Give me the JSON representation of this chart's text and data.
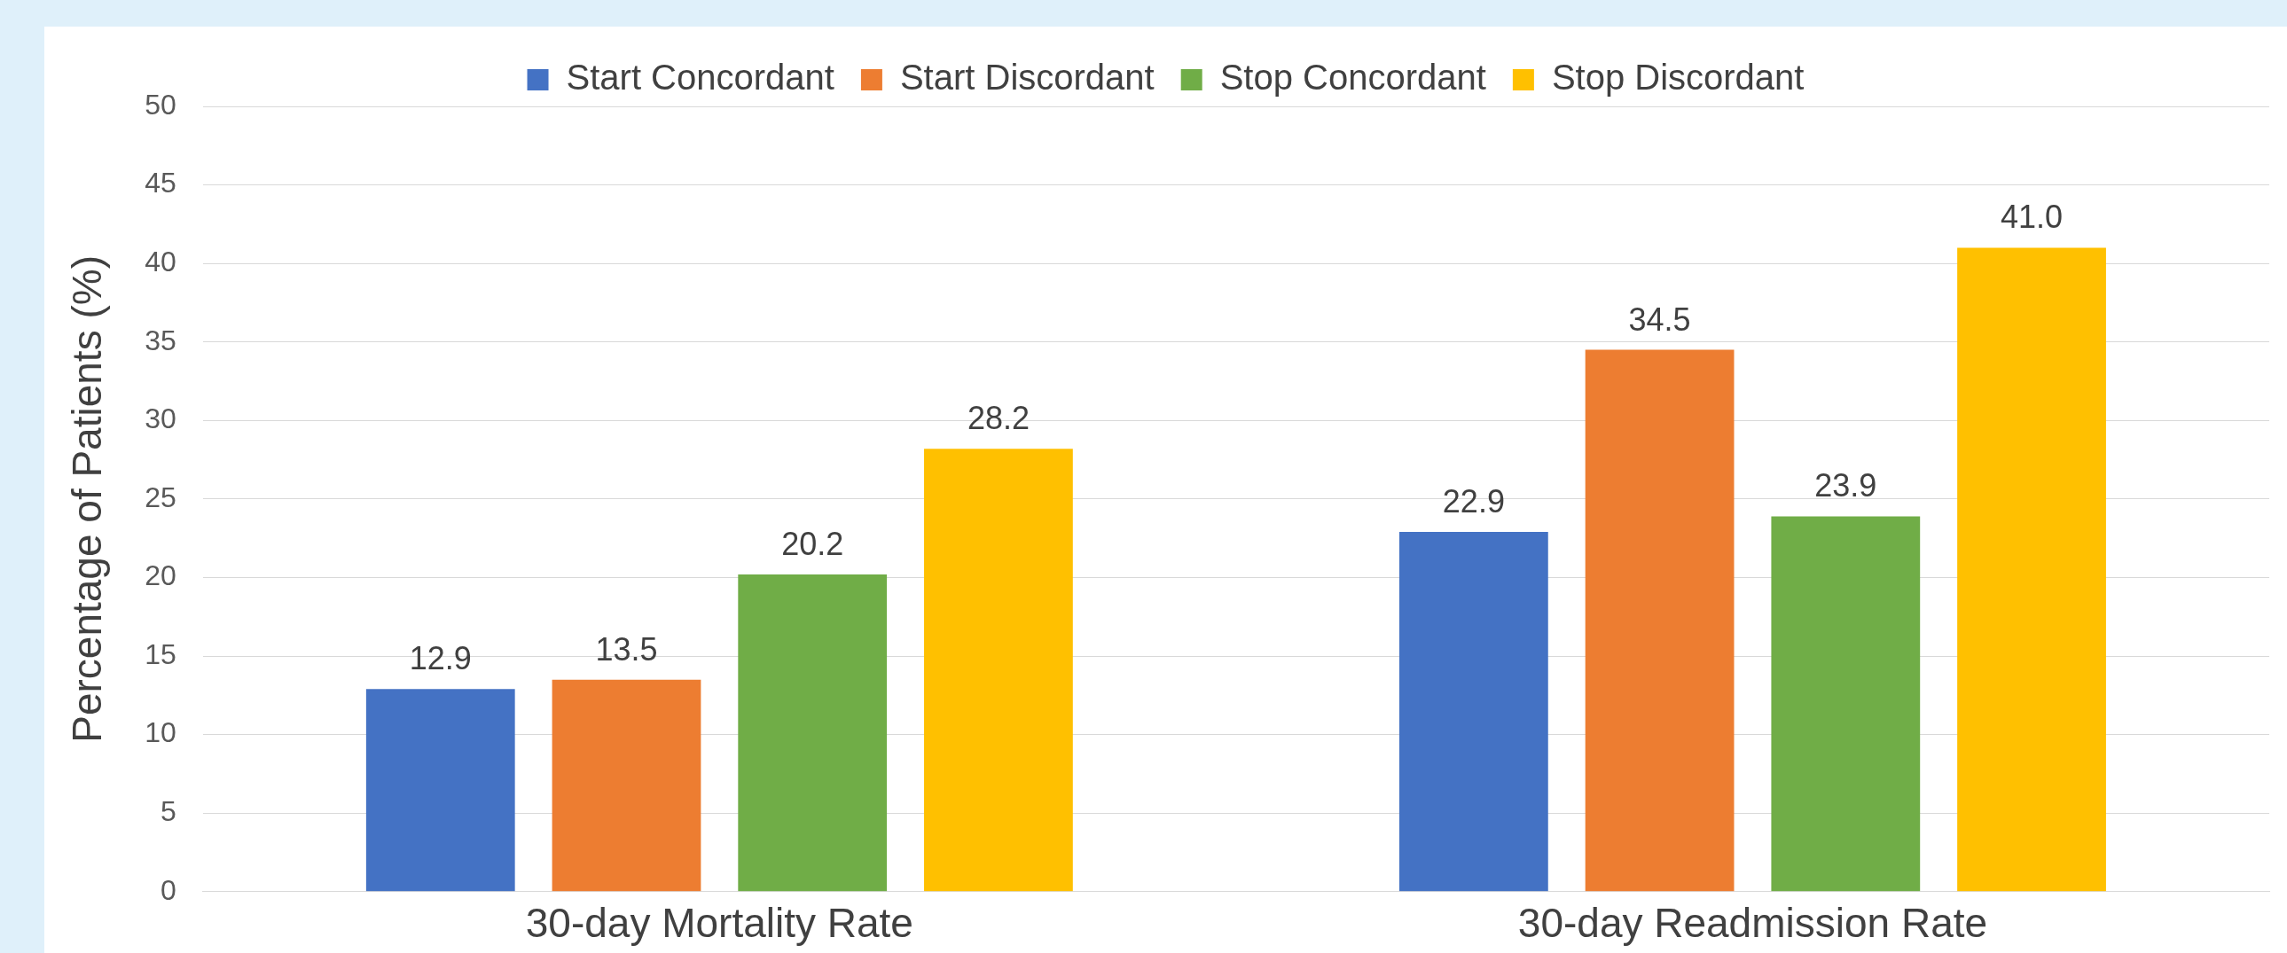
{
  "chart_data": {
    "type": "bar",
    "ylabel": "Percentage of Patients (%)",
    "categories": [
      "30-day Mortality Rate",
      "30-day Readmission Rate"
    ],
    "series": [
      {
        "name": "Start Concordant",
        "color": "#4472c4",
        "values": [
          12.9,
          22.9
        ],
        "value_labels": [
          "12.9",
          "22.9"
        ]
      },
      {
        "name": "Start Discordant",
        "color": "#ed7d31",
        "values": [
          13.5,
          34.5
        ],
        "value_labels": [
          "13.5",
          "34.5"
        ]
      },
      {
        "name": "Stop Concordant",
        "color": "#70ad47",
        "values": [
          20.2,
          23.9
        ],
        "value_labels": [
          "20.2",
          "23.9"
        ]
      },
      {
        "name": "Stop Discordant",
        "color": "#ffc000",
        "values": [
          28.2,
          41.0
        ],
        "value_labels": [
          "28.2",
          "41.0"
        ]
      }
    ],
    "ylim": [
      0,
      50
    ],
    "yticks": [
      0,
      5,
      10,
      15,
      20,
      25,
      30,
      35,
      40,
      45,
      50
    ],
    "grid": "y",
    "legend": "top"
  }
}
